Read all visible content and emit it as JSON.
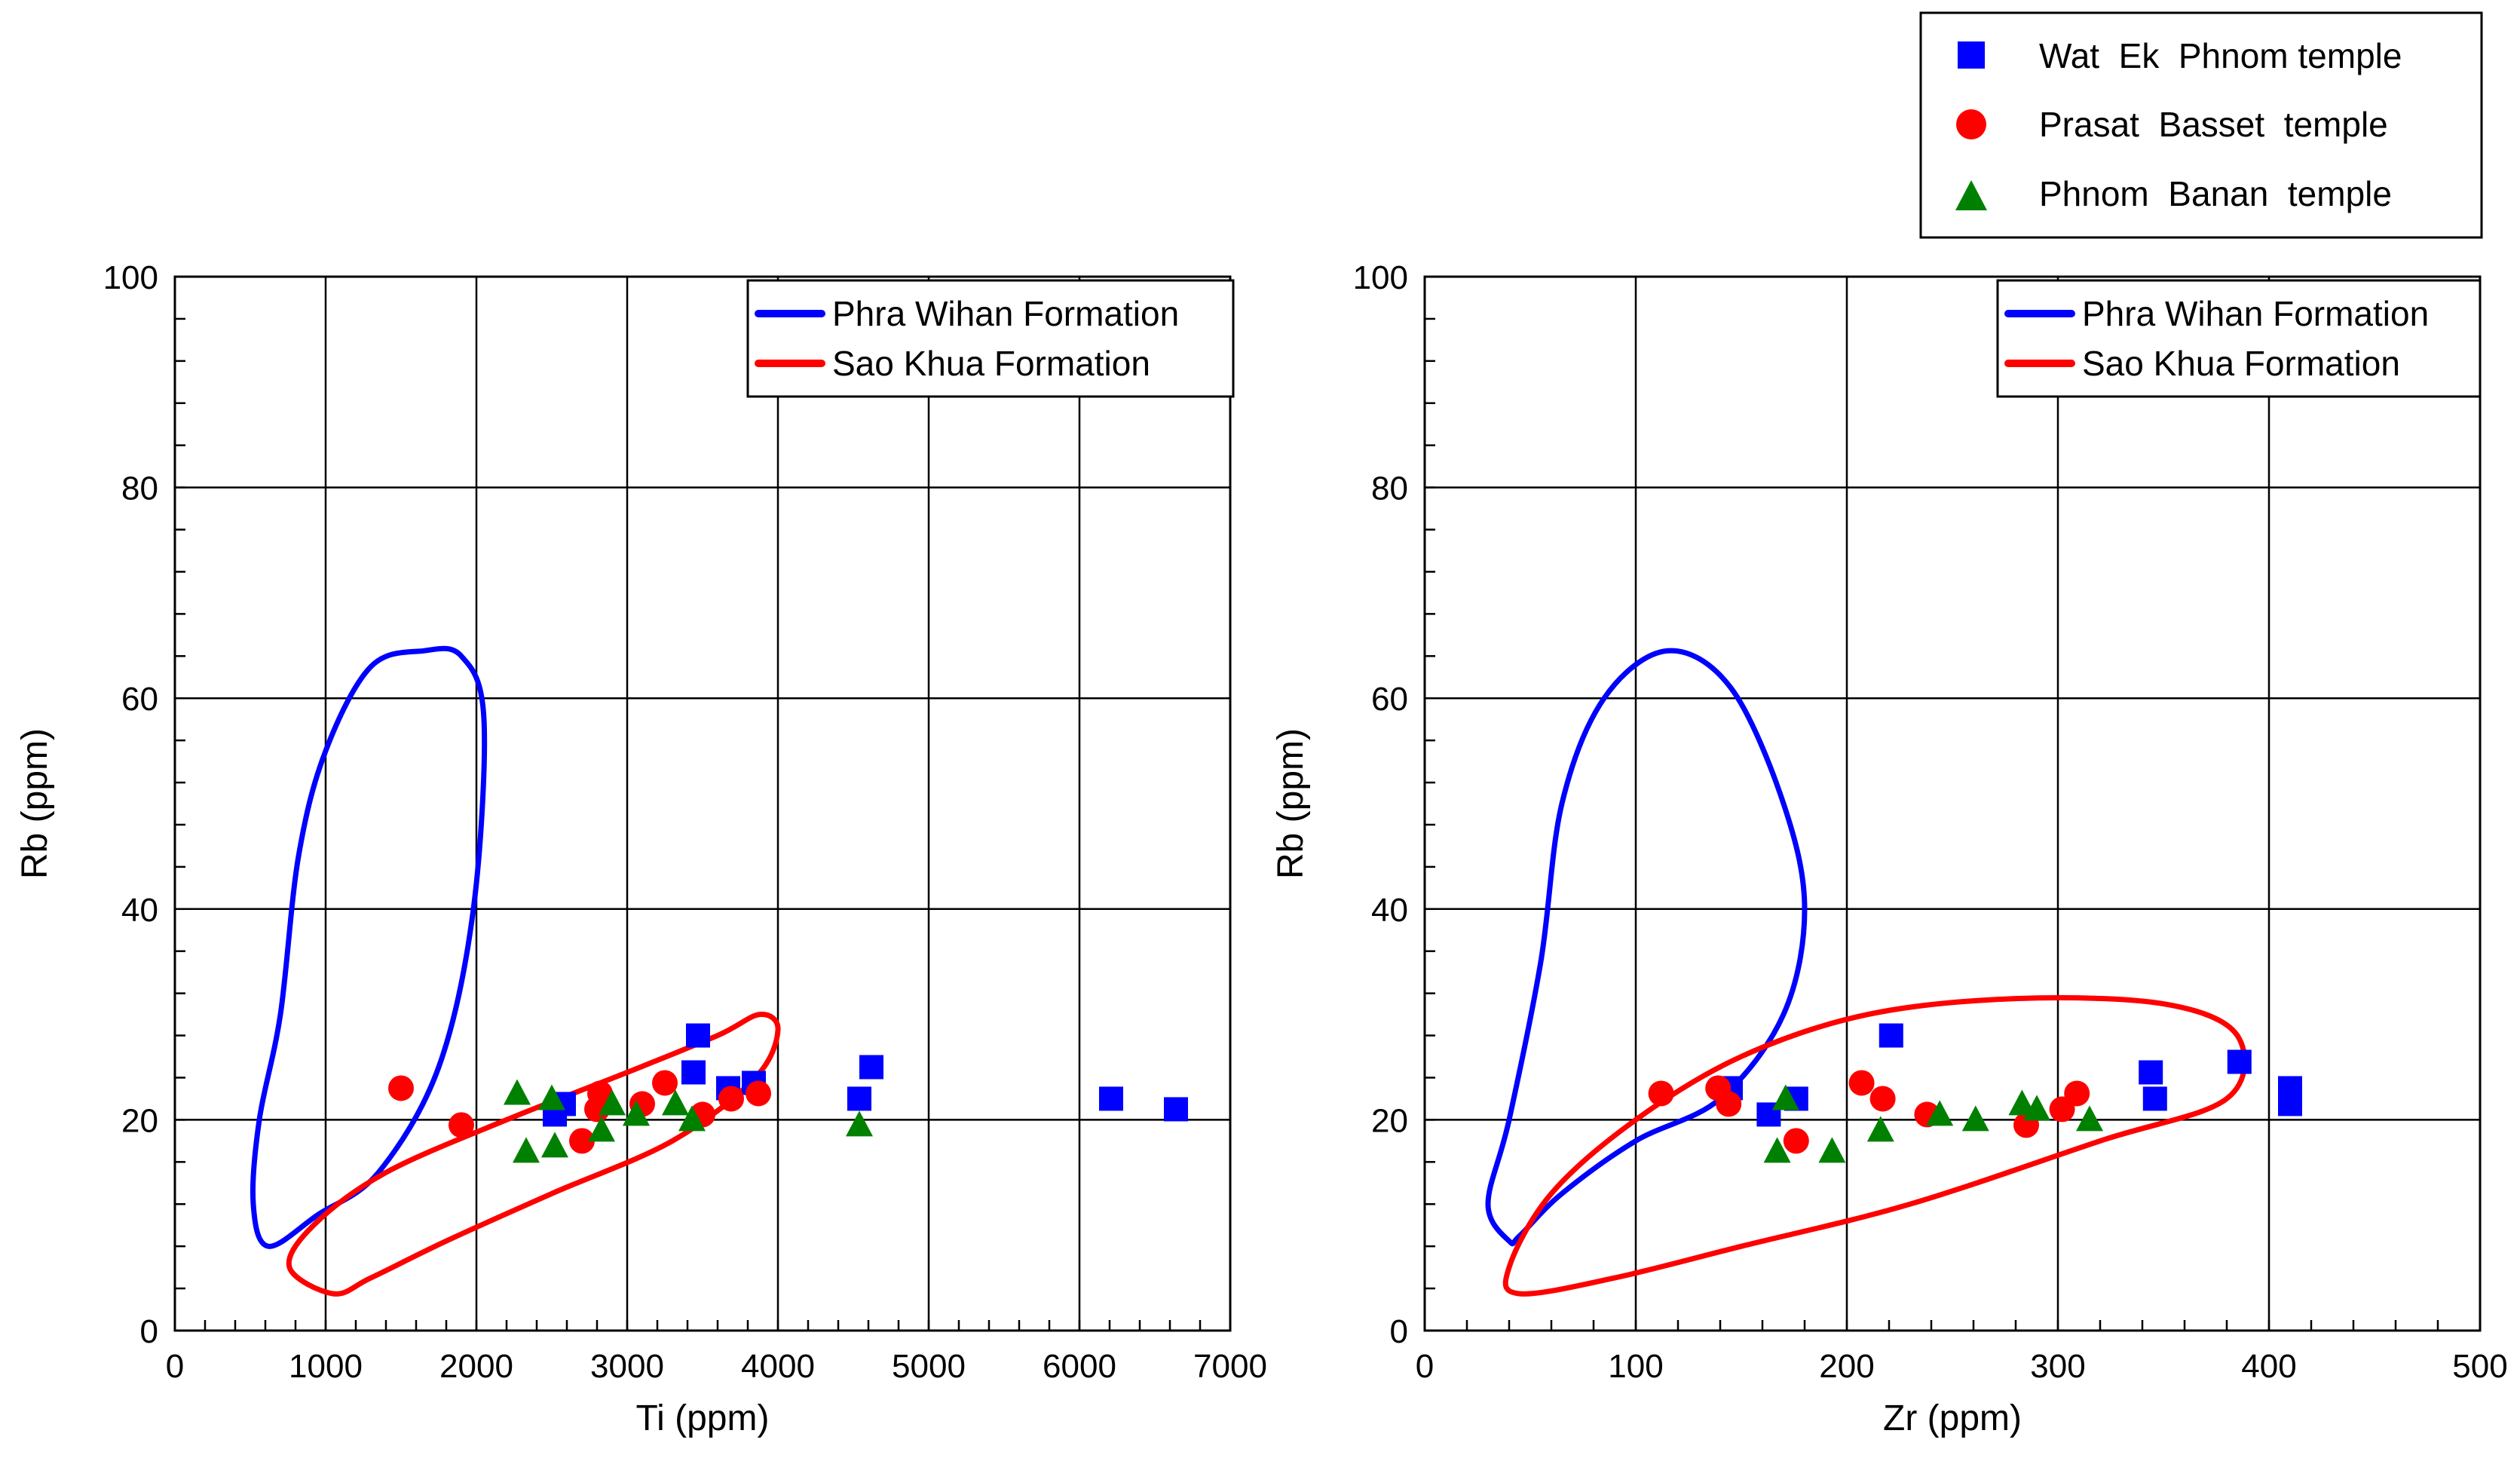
{
  "chart_data": [
    {
      "type": "scatter",
      "title": "",
      "xlabel": "Ti (ppm)",
      "ylabel": "Rb (ppm)",
      "xlim": [
        0,
        7000
      ],
      "ylim": [
        0,
        100
      ],
      "xticks": [
        0,
        1000,
        2000,
        3000,
        4000,
        5000,
        6000,
        7000
      ],
      "yticks": [
        0,
        20,
        40,
        60,
        80,
        100
      ],
      "grid": true,
      "legend_position": "top-right",
      "fields": [
        {
          "name": "Phra Wihan Formation",
          "color": "#0000ff",
          "outline": [
            [
              620,
              8
            ],
            [
              520,
              12
            ],
            [
              560,
              20
            ],
            [
              700,
              30
            ],
            [
              820,
              45
            ],
            [
              1000,
              55
            ],
            [
              1300,
              63
            ],
            [
              1650,
              64.5
            ],
            [
              1900,
              64
            ],
            [
              2050,
              58
            ],
            [
              1980,
              40
            ],
            [
              1750,
              25
            ],
            [
              1350,
              15
            ],
            [
              950,
              11
            ],
            [
              620,
              8
            ]
          ]
        },
        {
          "name": "Sao Khua Formation",
          "color": "#ff0000",
          "outline": [
            [
              1050,
              3.5
            ],
            [
              760,
              6
            ],
            [
              920,
              10
            ],
            [
              1400,
              15
            ],
            [
              2200,
              20
            ],
            [
              3000,
              24.5
            ],
            [
              3600,
              28
            ],
            [
              3880,
              30
            ],
            [
              4000,
              28.5
            ],
            [
              3850,
              24
            ],
            [
              3300,
              18
            ],
            [
              2500,
              13
            ],
            [
              1800,
              8.5
            ],
            [
              1300,
              5
            ],
            [
              1050,
              3.5
            ]
          ]
        }
      ],
      "series": [
        {
          "name": "Wat Ek Phnom temple",
          "marker": "square",
          "color": "#0000ff",
          "points": [
            [
              2520,
              20.5
            ],
            [
              2580,
              21.5
            ],
            [
              3470,
              28
            ],
            [
              3440,
              24.5
            ],
            [
              3670,
              23
            ],
            [
              3840,
              23.5
            ],
            [
              4540,
              22
            ],
            [
              4620,
              25
            ],
            [
              6210,
              22
            ],
            [
              6640,
              21
            ]
          ]
        },
        {
          "name": "Prasat Basset temple",
          "marker": "circle",
          "color": "#ff0000",
          "points": [
            [
              1500,
              23
            ],
            [
              1900,
              19.5
            ],
            [
              2700,
              18
            ],
            [
              2800,
              21
            ],
            [
              2820,
              22.5
            ],
            [
              3100,
              21.5
            ],
            [
              3250,
              23.5
            ],
            [
              3500,
              20.5
            ],
            [
              3690,
              22
            ],
            [
              3870,
              22.5
            ]
          ]
        },
        {
          "name": "Phnom Banan temple",
          "marker": "triangle",
          "color": "#008000",
          "points": [
            [
              2270,
              22.5
            ],
            [
              2330,
              17
            ],
            [
              2500,
              22
            ],
            [
              2520,
              17.5
            ],
            [
              2830,
              19
            ],
            [
              2900,
              21.5
            ],
            [
              3060,
              20.5
            ],
            [
              3320,
              21.5
            ],
            [
              3430,
              20
            ],
            [
              4540,
              19.5
            ]
          ]
        }
      ]
    },
    {
      "type": "scatter",
      "title": "",
      "xlabel": "Zr (ppm)",
      "ylabel": "Rb (ppm)",
      "xlim": [
        0,
        500
      ],
      "ylim": [
        0,
        100
      ],
      "xticks": [
        0,
        100,
        200,
        300,
        400,
        500
      ],
      "yticks": [
        0,
        20,
        40,
        60,
        80,
        100
      ],
      "grid": true,
      "legend_position": "top-right",
      "fields": [
        {
          "name": "Phra Wihan Formation",
          "color": "#0000ff",
          "outline": [
            [
              40,
              8.5
            ],
            [
              30,
              12
            ],
            [
              40,
              20
            ],
            [
              55,
              35
            ],
            [
              65,
              50
            ],
            [
              85,
              60
            ],
            [
              115,
              64.5
            ],
            [
              145,
              61
            ],
            [
              170,
              50
            ],
            [
              180,
              40
            ],
            [
              170,
              30
            ],
            [
              140,
              22
            ],
            [
              100,
              18
            ],
            [
              65,
              13
            ],
            [
              45,
              9
            ],
            [
              40,
              8.5
            ]
          ]
        },
        {
          "name": "Sao Khua Formation",
          "color": "#ff0000",
          "outline": [
            [
              45,
              3.5
            ],
            [
              40,
              6
            ],
            [
              60,
              13
            ],
            [
              100,
              20
            ],
            [
              150,
              26
            ],
            [
              210,
              30
            ],
            [
              280,
              31.5
            ],
            [
              350,
              31
            ],
            [
              385,
              28
            ],
            [
              380,
              22
            ],
            [
              320,
              18
            ],
            [
              230,
              12
            ],
            [
              150,
              8
            ],
            [
              90,
              5
            ],
            [
              45,
              3.5
            ]
          ]
        }
      ],
      "series": [
        {
          "name": "Wat Ek Phnom temple",
          "marker": "square",
          "color": "#0000ff",
          "points": [
            [
              145,
              23
            ],
            [
              163,
              20.5
            ],
            [
              176,
              22
            ],
            [
              221,
              28
            ],
            [
              344,
              24.5
            ],
            [
              346,
              22
            ],
            [
              386,
              25.5
            ],
            [
              410,
              23
            ],
            [
              410,
              21.5
            ]
          ]
        },
        {
          "name": "Prasat Basset temple",
          "marker": "circle",
          "color": "#ff0000",
          "points": [
            [
              112,
              22.5
            ],
            [
              139,
              23
            ],
            [
              144,
              21.5
            ],
            [
              176,
              18
            ],
            [
              207,
              23.5
            ],
            [
              217,
              22
            ],
            [
              238,
              20.5
            ],
            [
              285,
              19.5
            ],
            [
              302,
              21
            ],
            [
              309,
              22.5
            ]
          ]
        },
        {
          "name": "Phnom Banan temple",
          "marker": "triangle",
          "color": "#008000",
          "points": [
            [
              167,
              17
            ],
            [
              171,
              22
            ],
            [
              193,
              17
            ],
            [
              216,
              19
            ],
            [
              244,
              20.5
            ],
            [
              261,
              20
            ],
            [
              283,
              21.5
            ],
            [
              290,
              21
            ],
            [
              315,
              20
            ]
          ]
        }
      ]
    }
  ],
  "legend_top": {
    "items": [
      {
        "label": "Wat  Ek  Phnom temple",
        "marker": "square",
        "color": "#0000ff"
      },
      {
        "label": "Prasat  Basset  temple",
        "marker": "circle",
        "color": "#ff0000"
      },
      {
        "label": "Phnom  Banan  temple",
        "marker": "triangle",
        "color": "#008000"
      }
    ]
  },
  "legend_fields": {
    "items": [
      {
        "label": "Phra Wihan Formation",
        "color": "#0000ff"
      },
      {
        "label": "Sao Khua Formation",
        "color": "#ff0000"
      }
    ]
  }
}
